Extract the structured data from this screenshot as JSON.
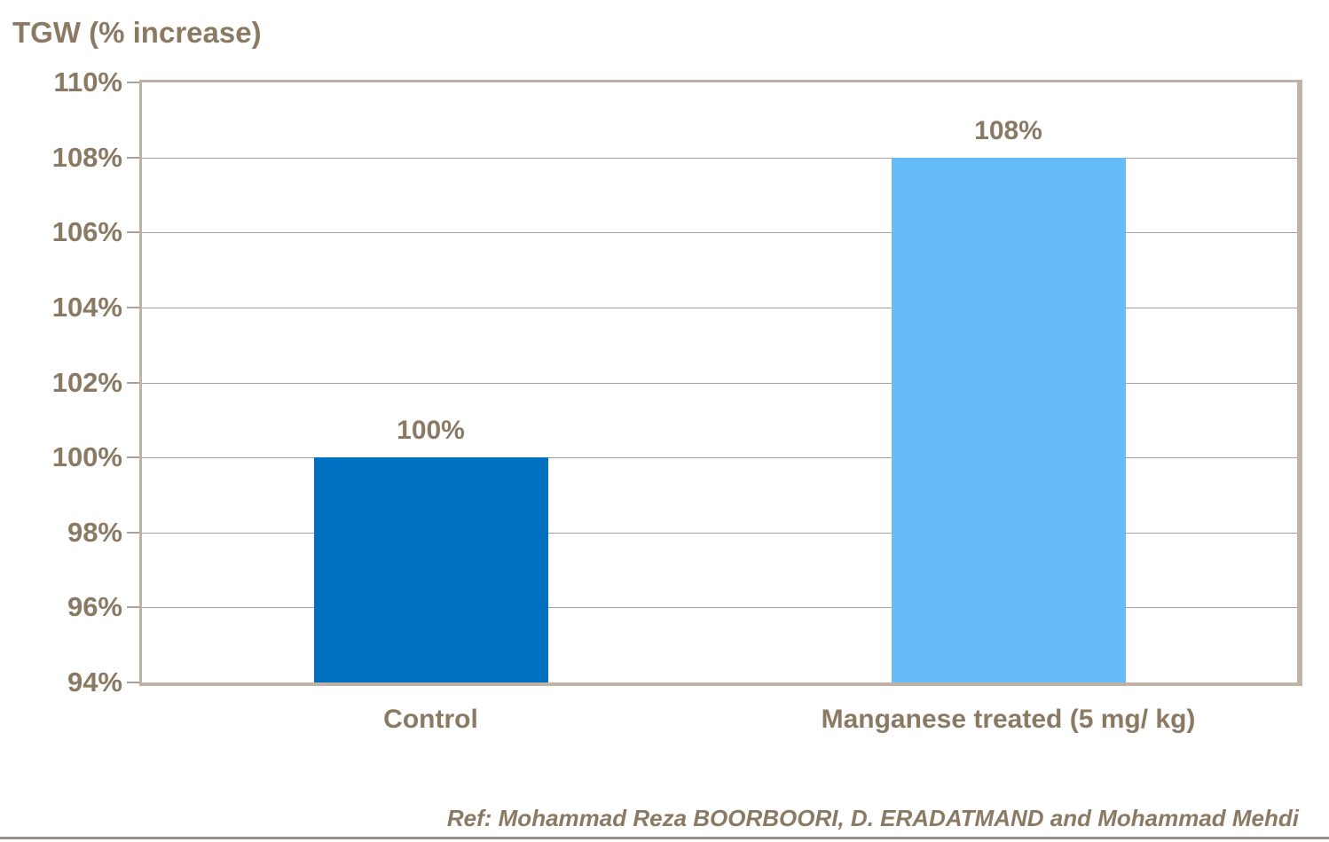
{
  "chart_data": {
    "type": "bar",
    "title": "TGW (% increase)",
    "categories": [
      "Control",
      "Manganese treated (5 mg/ kg)"
    ],
    "values": [
      100,
      108
    ],
    "value_labels": [
      "100%",
      "108%"
    ],
    "series_colors": [
      "#0070C0",
      "#66BBF9"
    ],
    "ylim": [
      94,
      110
    ],
    "y_tick_values": [
      110,
      108,
      106,
      104,
      102,
      100,
      98,
      96,
      94
    ],
    "y_tick_labels": [
      "110%",
      "108%",
      "106%",
      "104%",
      "102%",
      "100%",
      "98%",
      "96%",
      "94%"
    ],
    "grid": true,
    "legend_position": "none",
    "reference": "Ref: Mohammad Reza BOORBOORI, D. ERADATMAND and Mohammad Mehdi"
  },
  "colors": {
    "background": "#FFFFFF",
    "text": "#8A7A64",
    "plot_border": "#BFB3A7",
    "gridline": "#A6A299",
    "bottom_rule": "#98918A",
    "bar_control": "#0070C0",
    "bar_manganese_treated": "#66BBF9"
  }
}
